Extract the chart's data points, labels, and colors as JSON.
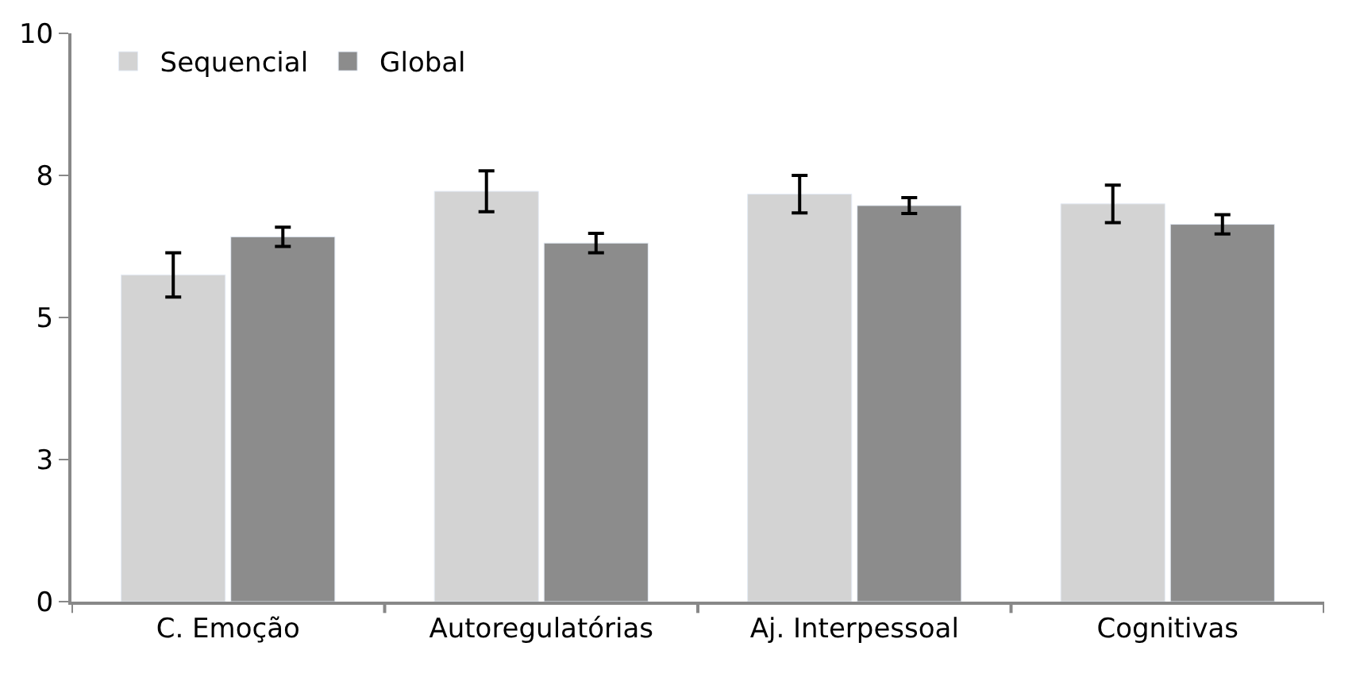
{
  "chart_data": {
    "type": "bar",
    "categories": [
      "C. Emoção",
      "Autoregulatórias",
      "Aj. Interpessoal",
      "Cognitivas"
    ],
    "series": [
      {
        "name": "Sequencial",
        "color": "#d3d3d3",
        "values": [
          5.75,
          7.22,
          7.17,
          7.0
        ],
        "errors": [
          0.39,
          0.36,
          0.33,
          0.33
        ]
      },
      {
        "name": "Global",
        "color": "#8c8c8c",
        "values": [
          6.42,
          6.31,
          6.97,
          6.64
        ],
        "errors": [
          0.17,
          0.17,
          0.14,
          0.17
        ]
      }
    ],
    "ylim": [
      0,
      10
    ],
    "yticks": [
      0,
      {
        "value": 2.5,
        "label": "3"
      },
      5,
      {
        "value": 7.5,
        "label": "8"
      },
      10
    ],
    "legend": "top left"
  }
}
